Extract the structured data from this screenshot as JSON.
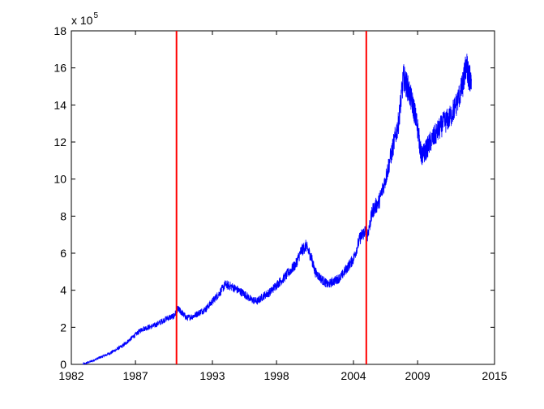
{
  "chart_data": {
    "type": "line",
    "title": "",
    "xlabel": "",
    "ylabel": "",
    "xlim": [
      1982,
      2015
    ],
    "ylim": [
      0,
      18
    ],
    "x_ticks": [
      1982,
      1987,
      1993,
      1998,
      2004,
      2009,
      2015
    ],
    "x_tick_labels": [
      "1982",
      "1987",
      "1993",
      "1998",
      "2004",
      "2009",
      "2015"
    ],
    "y_ticks": [
      0,
      2,
      4,
      6,
      8,
      10,
      12,
      14,
      16,
      18
    ],
    "y_tick_labels": [
      "0",
      "2",
      "4",
      "6",
      "8",
      "10",
      "12",
      "14",
      "16",
      "18"
    ],
    "y_multiplier": {
      "prefix": "x 10",
      "exponent": "5"
    },
    "grid": false,
    "legend": null,
    "series": [
      {
        "color": "#0000ff",
        "points": [
          [
            1982.9,
            0.0
          ],
          [
            1983.5,
            0.15
          ],
          [
            1984.0,
            0.3
          ],
          [
            1984.5,
            0.45
          ],
          [
            1985.0,
            0.6
          ],
          [
            1985.5,
            0.8
          ],
          [
            1986.0,
            1.0
          ],
          [
            1986.5,
            1.3
          ],
          [
            1987.0,
            1.6
          ],
          [
            1987.5,
            1.9
          ],
          [
            1988.0,
            2.0
          ],
          [
            1988.5,
            2.1
          ],
          [
            1989.0,
            2.3
          ],
          [
            1989.5,
            2.5
          ],
          [
            1990.0,
            2.6
          ],
          [
            1990.3,
            3.0
          ],
          [
            1990.6,
            2.8
          ],
          [
            1991.0,
            2.5
          ],
          [
            1991.5,
            2.6
          ],
          [
            1992.0,
            2.8
          ],
          [
            1992.5,
            3.0
          ],
          [
            1993.0,
            3.4
          ],
          [
            1993.5,
            3.8
          ],
          [
            1994.0,
            4.3
          ],
          [
            1994.5,
            4.2
          ],
          [
            1995.0,
            4.0
          ],
          [
            1995.5,
            3.8
          ],
          [
            1996.0,
            3.5
          ],
          [
            1996.5,
            3.4
          ],
          [
            1997.0,
            3.7
          ],
          [
            1997.5,
            3.9
          ],
          [
            1998.0,
            4.3
          ],
          [
            1998.5,
            4.6
          ],
          [
            1999.0,
            5.0
          ],
          [
            1999.5,
            5.4
          ],
          [
            1999.9,
            6.1
          ],
          [
            2000.3,
            6.4
          ],
          [
            2000.7,
            5.8
          ],
          [
            2001.0,
            5.0
          ],
          [
            2001.5,
            4.6
          ],
          [
            2002.0,
            4.3
          ],
          [
            2002.5,
            4.5
          ],
          [
            2003.0,
            4.7
          ],
          [
            2003.5,
            5.2
          ],
          [
            2004.0,
            5.7
          ],
          [
            2004.5,
            6.8
          ],
          [
            2004.9,
            7.2
          ],
          [
            2005.1,
            7.0
          ],
          [
            2005.5,
            8.3
          ],
          [
            2006.0,
            8.8
          ],
          [
            2006.5,
            10.0
          ],
          [
            2007.0,
            11.5
          ],
          [
            2007.5,
            13.0
          ],
          [
            2007.9,
            15.5
          ],
          [
            2008.3,
            14.8
          ],
          [
            2008.7,
            13.8
          ],
          [
            2009.0,
            12.8
          ],
          [
            2009.3,
            11.2
          ],
          [
            2009.6,
            11.5
          ],
          [
            2010.0,
            12.0
          ],
          [
            2010.5,
            12.5
          ],
          [
            2011.0,
            13.0
          ],
          [
            2011.5,
            13.3
          ],
          [
            2012.0,
            14.0
          ],
          [
            2012.5,
            15.0
          ],
          [
            2012.8,
            16.2
          ],
          [
            2013.0,
            15.5
          ],
          [
            2013.2,
            15.3
          ]
        ]
      }
    ],
    "vertical_lines": [
      {
        "x": 1990.2,
        "color": "#ff0000"
      },
      {
        "x": 2005.0,
        "color": "#ff0000"
      }
    ]
  }
}
